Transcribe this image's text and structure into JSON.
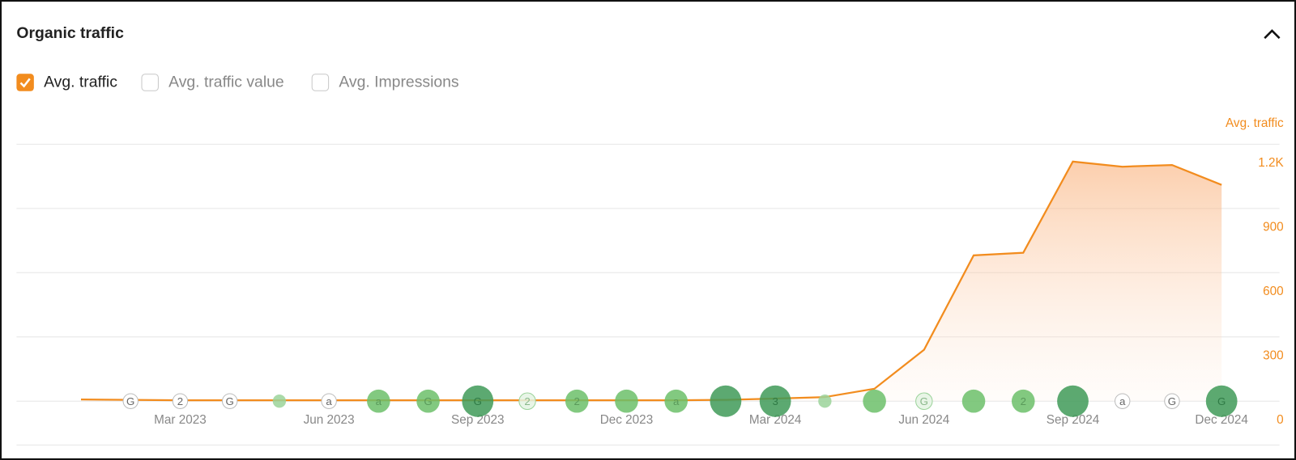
{
  "header": {
    "title": "Organic traffic"
  },
  "toggles": [
    {
      "label": "Avg. traffic",
      "checked": true
    },
    {
      "label": "Avg. traffic value",
      "checked": false
    },
    {
      "label": "Avg. Impressions",
      "checked": false
    }
  ],
  "chart_data": {
    "type": "area",
    "y_axis_title": "Avg. traffic",
    "categories": [
      null,
      null,
      "Mar 2023",
      null,
      null,
      "Jun 2023",
      null,
      null,
      "Sep 2023",
      null,
      null,
      "Dec 2023",
      null,
      null,
      "Mar 2024",
      null,
      null,
      "Jun 2024",
      null,
      null,
      "Sep 2024",
      null,
      null,
      "Dec 2024"
    ],
    "series": [
      {
        "name": "Avg. traffic",
        "color": "#f28c1e",
        "values": [
          8,
          6,
          4,
          4,
          4,
          4,
          4,
          4,
          4,
          4,
          4,
          4,
          4,
          6,
          12,
          19,
          58,
          240,
          681,
          693,
          1119,
          1095,
          1103,
          1010
        ]
      }
    ],
    "events": [
      null,
      "G",
      "2",
      "G",
      null,
      "a",
      "a",
      "G",
      "G",
      "2",
      "2",
      null,
      "a",
      null,
      "3",
      null,
      null,
      "G",
      null,
      "2",
      null,
      "a",
      "G",
      "G"
    ],
    "ylim": [
      0,
      1200
    ],
    "yticks": [
      0,
      300,
      600,
      900,
      {
        "value": 1200,
        "label": "1.2K"
      }
    ],
    "grid": true
  }
}
